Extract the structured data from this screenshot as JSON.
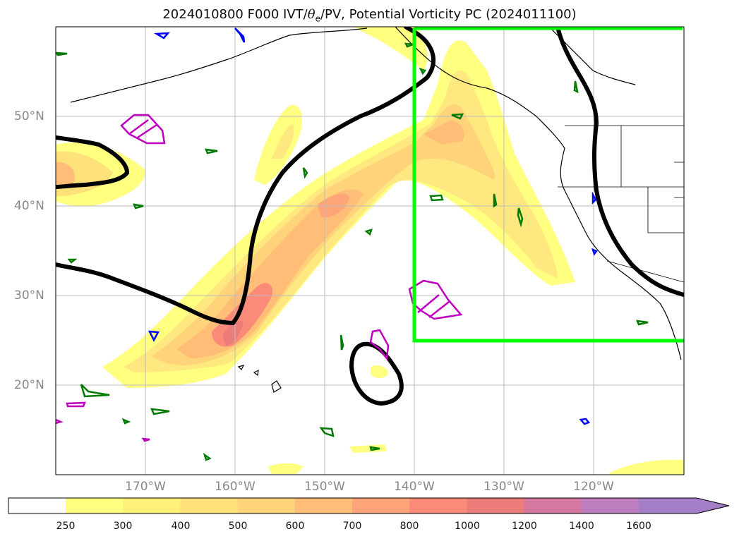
{
  "title": {
    "prefix": "2024010800 F000 IVT/",
    "theta": "θ",
    "theta_sub": "e",
    "suffix": "/PV, Potential Vorticity PC (2024011100)"
  },
  "lat_labels": [
    "50°N",
    "40°N",
    "30°N",
    "20°N"
  ],
  "lon_labels": [
    "170°W",
    "160°W",
    "150°W",
    "140°W",
    "130°W",
    "120°W"
  ],
  "colorbar": {
    "labels": [
      "250",
      "300",
      "400",
      "500",
      "600",
      "700",
      "800",
      "1000",
      "1200",
      "1400",
      "1600"
    ],
    "colors": [
      "#ffff80",
      "#fff07a",
      "#ffe17a",
      "#ffd37a",
      "#ffbd78",
      "#ffa378",
      "#fc8a78",
      "#ec7c7a",
      "#d478a0",
      "#bd7ec0",
      "#a57ec8"
    ],
    "extend": "max"
  },
  "map": {
    "lat_range": [
      10,
      60
    ],
    "lon_range": [
      -180,
      -110
    ],
    "gridlines": true,
    "focus_box": {
      "lat": [
        25,
        60
      ],
      "lon": [
        -140,
        -110
      ],
      "color": "#00ff00"
    }
  }
}
